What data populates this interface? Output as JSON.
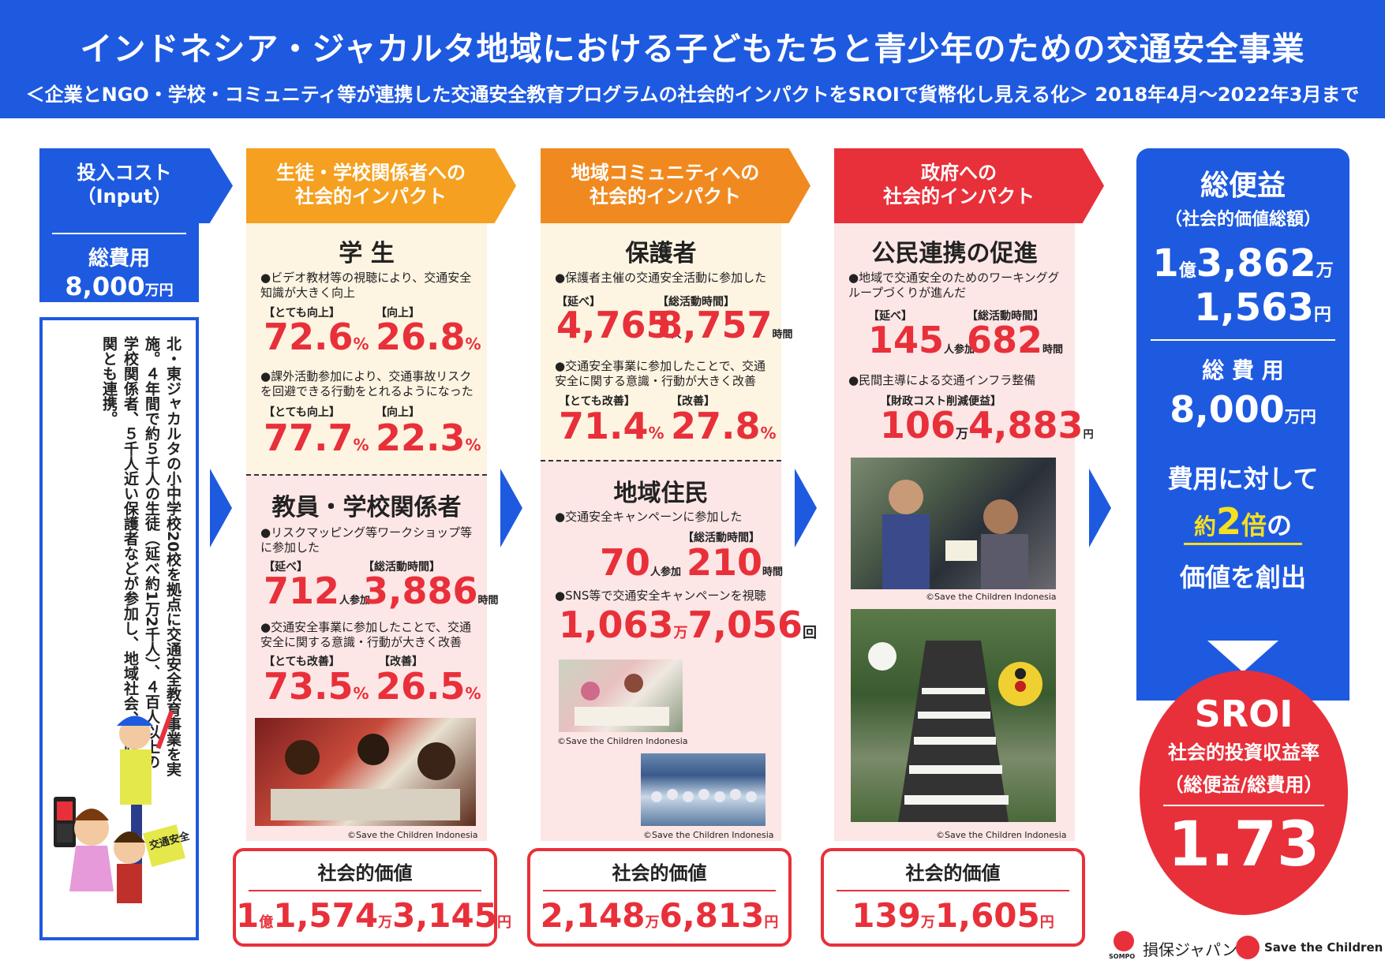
{
  "header": {
    "title": "インドネシア・ジャカルタ地域における子どもたちと青少年のための交通安全事業",
    "subtitle": "＜企業とNGO・学校・コミュニティ等が連携した交通安全教育プログラムの社会的インパクトをSROIで貨幣化し見える化＞ 2018年4月～2022年3月まで"
  },
  "input": {
    "heading1": "投入コスト",
    "heading2": "（Input）",
    "cost_label": "総費用",
    "cost_num": "8,000",
    "cost_unit": "万円",
    "description": "北・東ジャカルタの小中学校20校を拠点に交通安全教育事業を実施。４年間で約５千人の生徒（延べ約1万2千人）、４百人以上の学校関係者、５千人近い保護者などが参加し、地域社会、行政機関とも連携。",
    "sign_text": "交通安全"
  },
  "col1": {
    "header1": "生徒・学校関係者への",
    "header2": "社会的インパクト",
    "s1_title": "学 生",
    "s1_b1": "●ビデオ教材等の視聴により、交通安全知識が大きく向上",
    "s1_l1a": "【とても向上】",
    "s1_l1b": "【向上】",
    "s1_v1a": "72.6",
    "s1_v1b": "26.8",
    "s1_b2": "●課外活動参加により、交通事故リスクを回避できる行動をとれるようになった",
    "s1_l2a": "【とても向上】",
    "s1_l2b": "【向上】",
    "s1_v2a": "77.7",
    "s1_v2b": "22.3",
    "s2_title": "教員・学校関係者",
    "s2_b1": "●リスクマッピング等ワークショップ等に参加した",
    "s2_l1a": "【延べ】",
    "s2_l1b": "【総活動時間】",
    "s2_v1a": "712",
    "s2_u1a": "人参加",
    "s2_v1b": "3,886",
    "s2_u1b": "時間",
    "s2_b2": "●交通安全事業に参加したことで、交通安全に関する意識・行動が大きく改善",
    "s2_l2a": "【とても改善】",
    "s2_l2b": "【改善】",
    "s2_v2a": "73.5",
    "s2_v2b": "26.5",
    "credit": "©Save the Children Indonesia",
    "value_title": "社会的価値",
    "v_oku": "1",
    "v_oku_u": "億",
    "v_man": "1,574",
    "v_man_u": "万",
    "v_yen": "3,145",
    "v_yen_u": "円"
  },
  "col2": {
    "header1": "地域コミュニティへの",
    "header2": "社会的インパクト",
    "s1_title": "保護者",
    "s1_b1": "●保護者主催の交通安全活動に参加した",
    "s1_l1a": "【延べ】",
    "s1_l1b": "【総活動時間】",
    "s1_v1a": "4,765",
    "s1_u1a": "人",
    "s1_v1b": "8,757",
    "s1_u1b": "時間",
    "s1_b2": "●交通安全事業に参加したことで、交通安全に関する意識・行動が大きく改善",
    "s1_l2a": "【とても改善】",
    "s1_l2b": "【改善】",
    "s1_v2a": "71.4",
    "s1_v2b": "27.8",
    "s2_title": "地域住民",
    "s2_b1": "●交通安全キャンペーンに参加した",
    "s2_l1b": "【総活動時間】",
    "s2_v1a": "70",
    "s2_u1a": "人参加",
    "s2_v1b": "210",
    "s2_u1b": "時間",
    "s2_b2": "●SNS等で交通安全キャンペーンを視聴",
    "s2_v2a": "1,063",
    "s2_u2a": "万",
    "s2_v2b": "7,056",
    "s2_u2b": "回",
    "credit1": "©Save the Children Indonesia",
    "credit2": "©Save the Children Indonesia",
    "value_title": "社会的価値",
    "v_man": "2,148",
    "v_man_u": "万",
    "v_yen": "6,813",
    "v_yen_u": "円"
  },
  "col3": {
    "header1": "政府への",
    "header2": "社会的インパクト",
    "s1_title": "公民連携の促進",
    "s1_b1": "●地域で交通安全のためのワーキンググループづくりが進んだ",
    "s1_l1a": "【延べ】",
    "s1_l1b": "【総活動時間】",
    "s1_v1a": "145",
    "s1_u1a": "人参加",
    "s1_v1b": "682",
    "s1_u1b": "時間",
    "s1_b2": "●民間主導による交通インフラ整備",
    "s1_l2a": "【財政コスト削減便益】",
    "s1_v2a": "106",
    "s1_u2a": "万",
    "s1_v2b": "4,883",
    "s1_u2b": "円",
    "credit1": "©Save the Children Indonesia",
    "credit2": "©Save the Children Indonesia",
    "value_title": "社会的価値",
    "v_man": "139",
    "v_man_u": "万",
    "v_yen": "1,605",
    "v_yen_u": "円"
  },
  "summary": {
    "benefit_title": "総便益",
    "benefit_sub": "（社会的価値総額）",
    "b_oku": "1",
    "b_oku_u": "億",
    "b_man": "3,862",
    "b_man_u": "万",
    "b_yen": "1,563",
    "b_yen_u": "円",
    "cost_title": "総 費 用",
    "cost_num": "8,000",
    "cost_unit": "万円",
    "msg1": "費用に対して",
    "msg2a": "約",
    "msg2b": "2",
    "msg2c": "倍",
    "msg2d": "の",
    "msg3": "価値を創出",
    "sroi_title": "SROI",
    "sroi_sub1": "社会的投資収益率",
    "sroi_sub2": "（総便益/総費用）",
    "sroi_value": "1.73"
  },
  "footer": {
    "sompo_small": "SOMPO",
    "sompo": "損保ジャパン",
    "stc": "Save the Children"
  },
  "colors": {
    "blue": "#1e5ae0",
    "red": "#e8303a",
    "orange": "#f5a020",
    "cream": "#fdf4e2",
    "pink": "#fde6e6"
  }
}
